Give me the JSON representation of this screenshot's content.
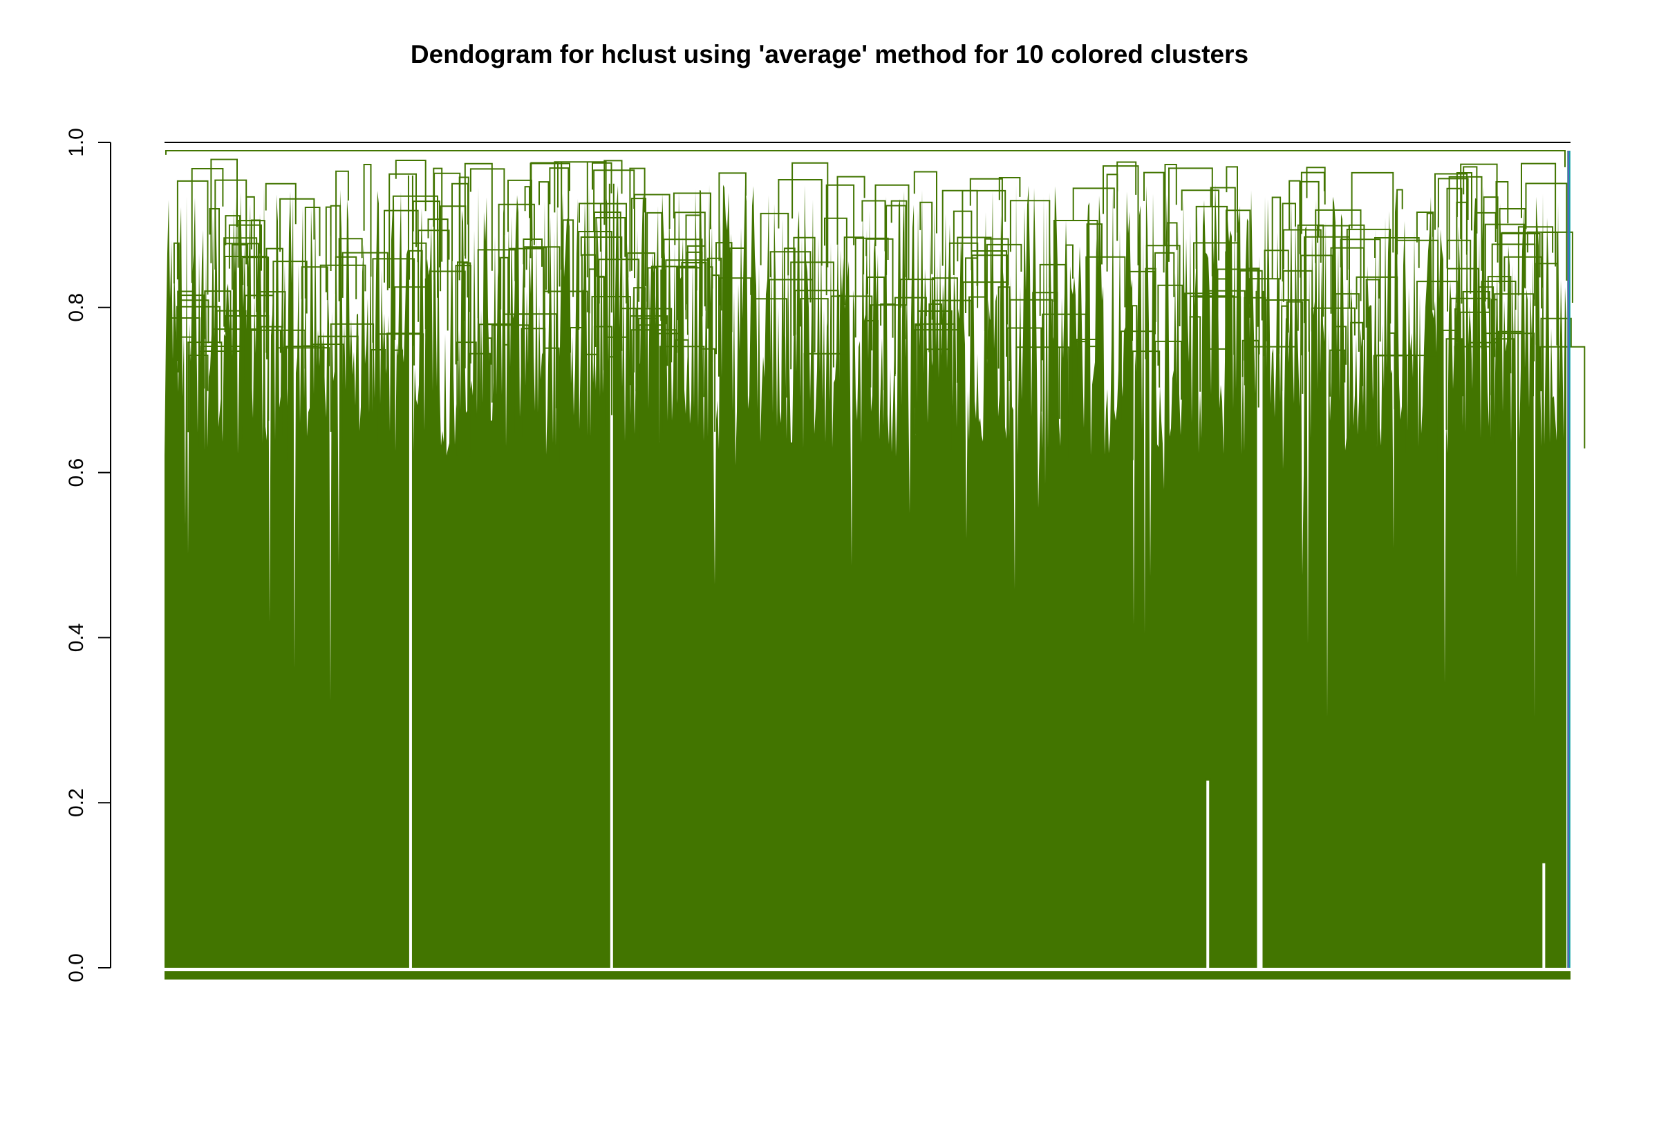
{
  "chart_data": {
    "type": "dendrogram",
    "title": "Dendogram for hclust using 'average' method for 10 colored clusters",
    "xlabel": "",
    "ylabel": "",
    "ylim": [
      0.0,
      1.0
    ],
    "y_ticks": [
      "0.0",
      "0.2",
      "0.4",
      "0.6",
      "0.8",
      "1.0"
    ],
    "y_tick_values": [
      0.0,
      0.2,
      0.4,
      0.6,
      0.8,
      1.0
    ],
    "grid": false,
    "legend": "none",
    "clusters": [
      {
        "name": "",
        "color": "#427500",
        "share": 0.996
      },
      {
        "name": "",
        "color": "#2e8b8b",
        "share": 0.001
      },
      {
        "name": "",
        "color": "#7f3fbf",
        "share": 0.001
      },
      {
        "name": "",
        "color": "#3f7fbf",
        "share": 0.001
      },
      {
        "name": "",
        "color": "#00a0a0",
        "share": 0.001
      }
    ],
    "root_height": 0.99,
    "gaps": [
      {
        "x_frac": 0.175,
        "merge_height": 0.96
      },
      {
        "x_frac": 0.318,
        "merge_height": 0.95
      },
      {
        "x_frac": 0.742,
        "merge_height": 0.23
      },
      {
        "x_frac": 0.779,
        "merge_height": 0.82
      },
      {
        "x_frac": 0.981,
        "merge_height": 0.13
      }
    ],
    "colors": {
      "tree": "#427500",
      "axis": "#000000",
      "background": "#ffffff"
    }
  }
}
